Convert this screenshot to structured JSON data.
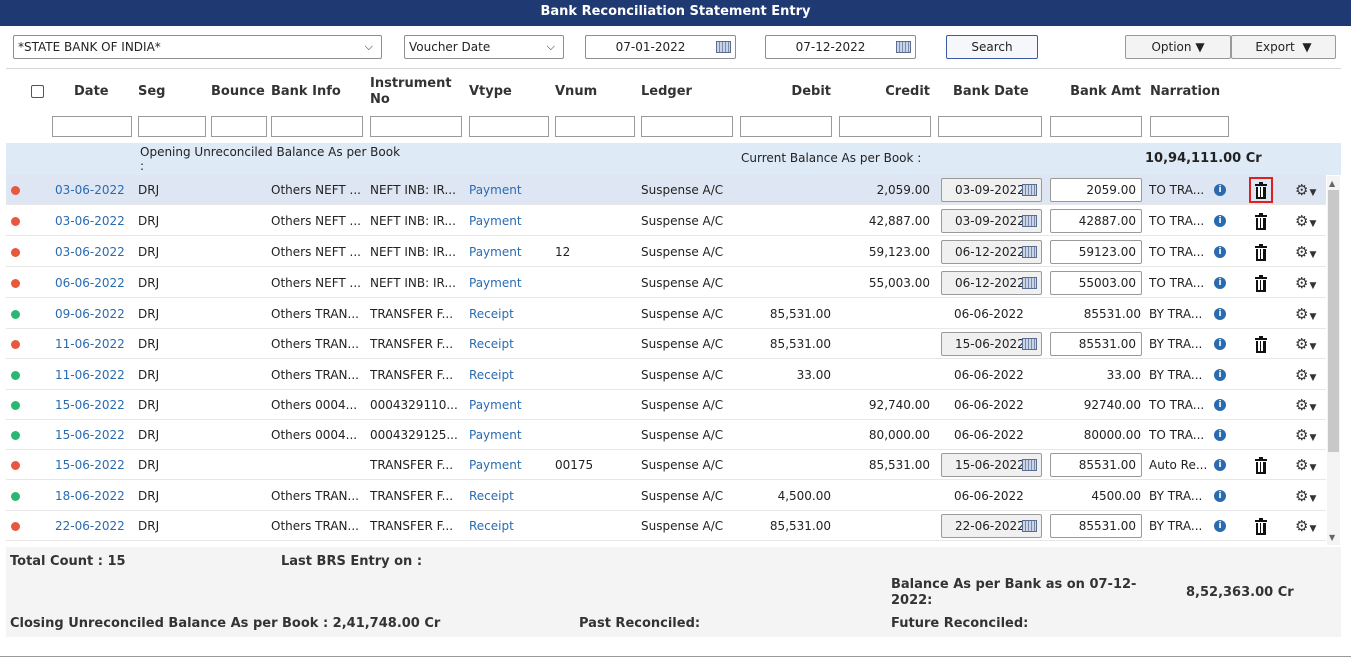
{
  "title": "Bank Reconciliation Statement Entry",
  "controls": {
    "bank": "*STATE BANK OF INDIA*",
    "date_type": "Voucher Date",
    "from_date": "07-01-2022",
    "to_date": "07-12-2022",
    "search": "Search",
    "option": "Option",
    "export": "Export"
  },
  "headers": {
    "date": "Date",
    "seg": "Seg",
    "bounce": "Bounce",
    "bank_info": "Bank Info",
    "instrument_1": "Instrument",
    "instrument_2": "No",
    "vtype": "Vtype",
    "vnum": "Vnum",
    "ledger": "Ledger",
    "debit": "Debit",
    "credit": "Credit",
    "bank_date": "Bank Date",
    "bank_amt": "Bank Amt",
    "narration": "Narration"
  },
  "opening": {
    "label_1": "Opening Unreconciled Balance As per Book",
    "label_2": ":",
    "current_label": "Current Balance As per Book :",
    "current_value": "10,94,111.00 Cr"
  },
  "status_colors": {
    "unreconciled": "#e8583f",
    "reconciled": "#2bb673"
  },
  "rows": [
    {
      "status": "unreconciled",
      "date": "03-06-2022",
      "seg": "DRJ",
      "bank_info": "Others NEFT ...",
      "instrument": "NEFT INB: IR...",
      "vtype": "Payment",
      "vnum": "",
      "ledger": "Suspense A/C",
      "debit": "",
      "credit": "2,059.00",
      "bank_date": "03-09-2022",
      "bank_amt": "2059.00",
      "narration": "TO TRA...",
      "editable": true
    },
    {
      "status": "unreconciled",
      "date": "03-06-2022",
      "seg": "DRJ",
      "bank_info": "Others NEFT ...",
      "instrument": "NEFT INB: IR...",
      "vtype": "Payment",
      "vnum": "",
      "ledger": "Suspense A/C",
      "debit": "",
      "credit": "42,887.00",
      "bank_date": "03-09-2022",
      "bank_amt": "42887.00",
      "narration": "TO TRA...",
      "editable": true
    },
    {
      "status": "unreconciled",
      "date": "03-06-2022",
      "seg": "DRJ",
      "bank_info": "Others NEFT ...",
      "instrument": "NEFT INB: IR...",
      "vtype": "Payment",
      "vnum": "12",
      "ledger": "Suspense A/C",
      "debit": "",
      "credit": "59,123.00",
      "bank_date": "06-12-2022",
      "bank_amt": "59123.00",
      "narration": "TO TRA...",
      "editable": true
    },
    {
      "status": "unreconciled",
      "date": "06-06-2022",
      "seg": "DRJ",
      "bank_info": "Others NEFT ...",
      "instrument": "NEFT INB: IR...",
      "vtype": "Payment",
      "vnum": "",
      "ledger": "Suspense A/C",
      "debit": "",
      "credit": "55,003.00",
      "bank_date": "06-12-2022",
      "bank_amt": "55003.00",
      "narration": "TO TRA...",
      "editable": true
    },
    {
      "status": "reconciled",
      "date": "09-06-2022",
      "seg": "DRJ",
      "bank_info": "Others TRAN...",
      "instrument": "TRANSFER F...",
      "vtype": "Receipt",
      "vnum": "",
      "ledger": "Suspense A/C",
      "debit": "85,531.00",
      "credit": "",
      "bank_date": "06-06-2022",
      "bank_amt": "85531.00",
      "narration": "BY TRA...",
      "editable": false
    },
    {
      "status": "unreconciled",
      "date": "11-06-2022",
      "seg": "DRJ",
      "bank_info": "Others TRAN...",
      "instrument": "TRANSFER F...",
      "vtype": "Receipt",
      "vnum": "",
      "ledger": "Suspense A/C",
      "debit": "85,531.00",
      "credit": "",
      "bank_date": "15-06-2022",
      "bank_amt": "85531.00",
      "narration": "BY TRA...",
      "editable": true
    },
    {
      "status": "reconciled",
      "date": "11-06-2022",
      "seg": "DRJ",
      "bank_info": "Others TRAN...",
      "instrument": "TRANSFER F...",
      "vtype": "Receipt",
      "vnum": "",
      "ledger": "Suspense A/C",
      "debit": "33.00",
      "credit": "",
      "bank_date": "06-06-2022",
      "bank_amt": "33.00",
      "narration": "BY TRA...",
      "editable": false
    },
    {
      "status": "reconciled",
      "date": "15-06-2022",
      "seg": "DRJ",
      "bank_info": "Others 0004...",
      "instrument": "0004329110...",
      "vtype": "Payment",
      "vnum": "",
      "ledger": "Suspense A/C",
      "debit": "",
      "credit": "92,740.00",
      "bank_date": "06-06-2022",
      "bank_amt": "92740.00",
      "narration": "TO TRA...",
      "editable": false
    },
    {
      "status": "reconciled",
      "date": "15-06-2022",
      "seg": "DRJ",
      "bank_info": "Others 0004...",
      "instrument": "0004329125...",
      "vtype": "Payment",
      "vnum": "",
      "ledger": "Suspense A/C",
      "debit": "",
      "credit": "80,000.00",
      "bank_date": "06-06-2022",
      "bank_amt": "80000.00",
      "narration": "TO TRA...",
      "editable": false
    },
    {
      "status": "unreconciled",
      "date": "15-06-2022",
      "seg": "DRJ",
      "bank_info": "",
      "instrument": "TRANSFER F...",
      "vtype": "Payment",
      "vnum": "00175",
      "ledger": "Suspense A/C",
      "debit": "",
      "credit": "85,531.00",
      "bank_date": "15-06-2022",
      "bank_amt": "85531.00",
      "narration": "Auto Re...",
      "editable": true
    },
    {
      "status": "reconciled",
      "date": "18-06-2022",
      "seg": "DRJ",
      "bank_info": "Others TRAN...",
      "instrument": "TRANSFER F...",
      "vtype": "Receipt",
      "vnum": "",
      "ledger": "Suspense A/C",
      "debit": "4,500.00",
      "credit": "",
      "bank_date": "06-06-2022",
      "bank_amt": "4500.00",
      "narration": "BY TRA...",
      "editable": false
    },
    {
      "status": "unreconciled",
      "date": "22-06-2022",
      "seg": "DRJ",
      "bank_info": "Others TRAN...",
      "instrument": "TRANSFER F...",
      "vtype": "Receipt",
      "vnum": "",
      "ledger": "Suspense A/C",
      "debit": "85,531.00",
      "credit": "",
      "bank_date": "22-06-2022",
      "bank_amt": "85531.00",
      "narration": "BY TRA...",
      "editable": true
    }
  ],
  "footer": {
    "total_count": "Total Count : 15",
    "last_brs": "Last BRS Entry on :",
    "bank_balance_1": "Balance As per Bank as on 07-12-",
    "bank_balance_2": "2022:",
    "bank_balance_value": "8,52,363.00 Cr",
    "closing": "Closing Unreconciled Balance As per Book : 2,41,748.00 Cr",
    "past": "Past Reconciled:",
    "future": "Future Reconciled:"
  }
}
